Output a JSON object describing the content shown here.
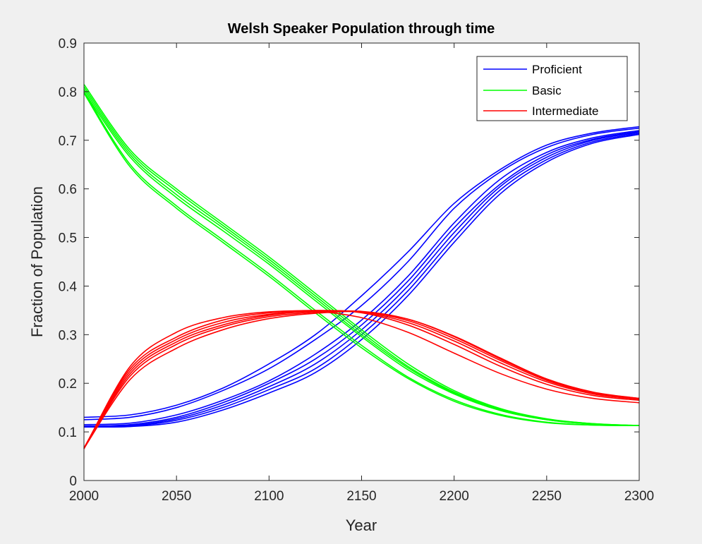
{
  "chart_data": {
    "type": "line",
    "title": "Welsh Speaker Population through time",
    "xlabel": "Year",
    "ylabel": "Fraction of Population",
    "xlim": [
      2000,
      2300
    ],
    "ylim": [
      0,
      0.9
    ],
    "xticks": [
      2000,
      2050,
      2100,
      2150,
      2200,
      2250,
      2300
    ],
    "yticks": [
      0,
      0.1,
      0.2,
      0.3,
      0.4,
      0.5,
      0.6,
      0.7,
      0.8,
      0.9
    ],
    "xtick_labels": [
      "2000",
      "2050",
      "2100",
      "2150",
      "2200",
      "2250",
      "2300"
    ],
    "ytick_labels": [
      "0",
      "0.1",
      "0.2",
      "0.3",
      "0.4",
      "0.5",
      "0.6",
      "0.7",
      "0.8",
      "0.9"
    ],
    "grid": false,
    "legend_position": "top-right",
    "legend": [
      {
        "label": "Proficient",
        "color": "#0000ff"
      },
      {
        "label": "Basic",
        "color": "#00ff00"
      },
      {
        "label": "Intermediate",
        "color": "#ff0000"
      }
    ],
    "x": [
      2000,
      2025,
      2050,
      2075,
      2100,
      2125,
      2150,
      2175,
      2200,
      2225,
      2250,
      2275,
      2300
    ],
    "series": [
      {
        "name": "Proficient",
        "color": "#0000ff",
        "values": [
          0.13,
          0.135,
          0.155,
          0.19,
          0.24,
          0.3,
          0.38,
          0.47,
          0.57,
          0.64,
          0.69,
          0.715,
          0.728
        ]
      },
      {
        "color": "#0000ff",
        "values": [
          0.125,
          0.13,
          0.15,
          0.185,
          0.23,
          0.29,
          0.36,
          0.45,
          0.56,
          0.635,
          0.685,
          0.712,
          0.725
        ]
      },
      {
        "color": "#0000ff",
        "values": [
          0.115,
          0.118,
          0.135,
          0.165,
          0.205,
          0.26,
          0.33,
          0.42,
          0.53,
          0.62,
          0.675,
          0.705,
          0.72
        ]
      },
      {
        "color": "#0000ff",
        "values": [
          0.112,
          0.115,
          0.13,
          0.16,
          0.2,
          0.25,
          0.32,
          0.41,
          0.52,
          0.61,
          0.67,
          0.702,
          0.718
        ]
      },
      {
        "color": "#0000ff",
        "values": [
          0.11,
          0.113,
          0.127,
          0.155,
          0.193,
          0.24,
          0.31,
          0.4,
          0.51,
          0.605,
          0.665,
          0.7,
          0.716
        ]
      },
      {
        "color": "#0000ff",
        "values": [
          0.11,
          0.112,
          0.124,
          0.15,
          0.187,
          0.23,
          0.3,
          0.39,
          0.5,
          0.598,
          0.66,
          0.697,
          0.714
        ]
      },
      {
        "color": "#0000ff",
        "values": [
          0.11,
          0.111,
          0.12,
          0.145,
          0.18,
          0.222,
          0.29,
          0.38,
          0.49,
          0.59,
          0.655,
          0.694,
          0.712
        ]
      },
      {
        "name": "Basic",
        "color": "#00ff00",
        "values": [
          0.815,
          0.68,
          0.6,
          0.53,
          0.46,
          0.385,
          0.31,
          0.24,
          0.185,
          0.148,
          0.127,
          0.117,
          0.113
        ]
      },
      {
        "color": "#00ff00",
        "values": [
          0.81,
          0.675,
          0.595,
          0.525,
          0.455,
          0.38,
          0.305,
          0.235,
          0.182,
          0.146,
          0.126,
          0.117,
          0.113
        ]
      },
      {
        "color": "#00ff00",
        "values": [
          0.805,
          0.67,
          0.588,
          0.52,
          0.45,
          0.375,
          0.3,
          0.232,
          0.18,
          0.145,
          0.125,
          0.116,
          0.113
        ]
      },
      {
        "color": "#00ff00",
        "values": [
          0.8,
          0.665,
          0.582,
          0.514,
          0.445,
          0.37,
          0.296,
          0.228,
          0.178,
          0.144,
          0.125,
          0.116,
          0.113
        ]
      },
      {
        "color": "#00ff00",
        "values": [
          0.8,
          0.65,
          0.565,
          0.495,
          0.425,
          0.35,
          0.278,
          0.213,
          0.166,
          0.136,
          0.12,
          0.114,
          0.113
        ]
      },
      {
        "color": "#00ff00",
        "values": [
          0.797,
          0.645,
          0.56,
          0.49,
          0.42,
          0.345,
          0.273,
          0.21,
          0.163,
          0.134,
          0.119,
          0.114,
          0.113
        ]
      },
      {
        "name": "Intermediate",
        "color": "#ff0000",
        "values": [
          0.067,
          0.23,
          0.295,
          0.33,
          0.345,
          0.35,
          0.345,
          0.32,
          0.28,
          0.235,
          0.198,
          0.175,
          0.165
        ]
      },
      {
        "color": "#ff0000",
        "values": [
          0.067,
          0.225,
          0.29,
          0.325,
          0.342,
          0.349,
          0.346,
          0.325,
          0.287,
          0.242,
          0.203,
          0.178,
          0.167
        ]
      },
      {
        "color": "#ff0000",
        "values": [
          0.066,
          0.22,
          0.285,
          0.32,
          0.34,
          0.348,
          0.347,
          0.329,
          0.292,
          0.247,
          0.206,
          0.18,
          0.168
        ]
      },
      {
        "color": "#ff0000",
        "values": [
          0.066,
          0.215,
          0.28,
          0.316,
          0.337,
          0.346,
          0.348,
          0.332,
          0.296,
          0.25,
          0.208,
          0.181,
          0.169
        ]
      },
      {
        "color": "#ff0000",
        "values": [
          0.066,
          0.208,
          0.272,
          0.31,
          0.333,
          0.344,
          0.347,
          0.332,
          0.297,
          0.252,
          0.209,
          0.182,
          0.169
        ]
      },
      {
        "color": "#ff0000",
        "values": [
          0.065,
          0.235,
          0.305,
          0.335,
          0.347,
          0.348,
          0.335,
          0.305,
          0.262,
          0.22,
          0.188,
          0.169,
          0.16
        ]
      }
    ]
  }
}
